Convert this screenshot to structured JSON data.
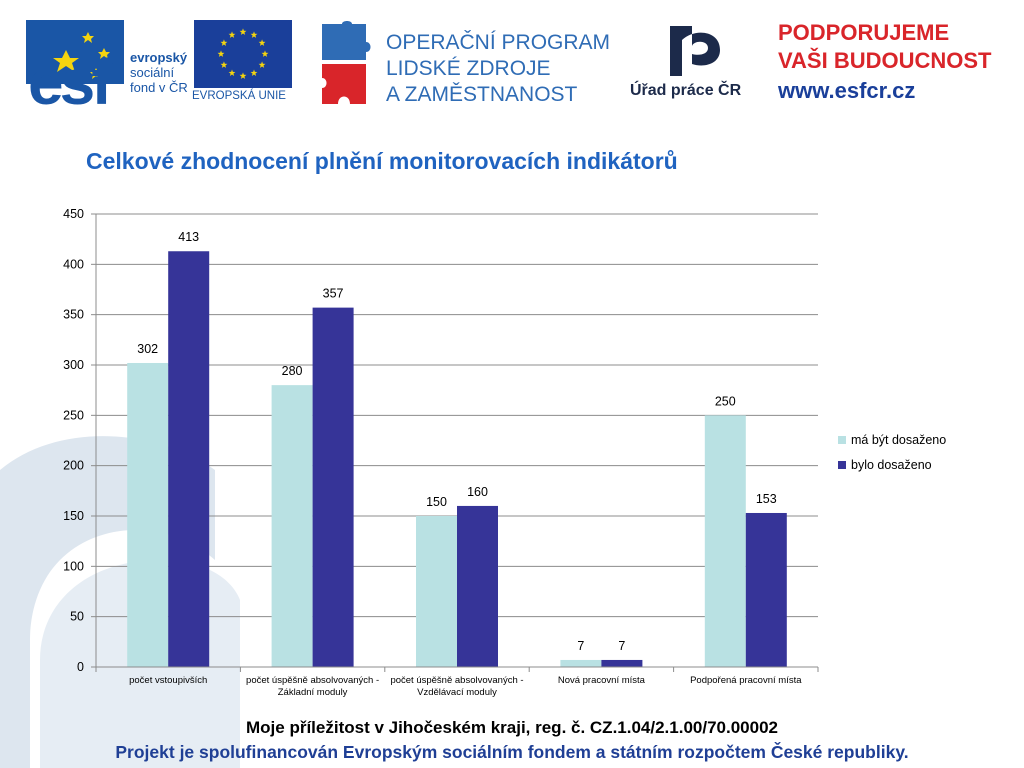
{
  "header": {
    "esf": {
      "letters": "esf",
      "line1": "evropský",
      "line2": "sociální",
      "line3": "fond v ČR",
      "eu_caption": "EVROPSKÁ UNIE"
    },
    "op": {
      "line1": "OPERAČNÍ PROGRAM",
      "line2": "LIDSKÉ ZDROJE",
      "line3": "A ZAMĚSTNANOST"
    },
    "urad": {
      "caption": "Úřad práce ČR"
    },
    "podporujeme": {
      "line1": "PODPORUJEME",
      "line2": "VAŠI BUDOUCNOST",
      "web": "www.esfcr.cz"
    }
  },
  "chart_data": {
    "type": "bar",
    "title": "Celkové zhodnocení plnění monitorovacích indikátorů",
    "categories": [
      [
        "počet vstoupivších"
      ],
      [
        "počet úspěšně absolvovaných -",
        "Základní moduly"
      ],
      [
        "počet úspěšně absolvovaných -",
        "Vzdělávací moduly"
      ],
      [
        "Nová pracovní místa"
      ],
      [
        "Podpořená pracovní místa"
      ]
    ],
    "series": [
      {
        "name": "má být dosaženo",
        "values": [
          302,
          280,
          150,
          7,
          250
        ],
        "color": "#b9e1e3"
      },
      {
        "name": "bylo dosaženo",
        "values": [
          413,
          357,
          160,
          7,
          153
        ],
        "color": "#363498"
      }
    ],
    "ylim": [
      0,
      450
    ],
    "yticks": [
      0,
      50,
      100,
      150,
      200,
      250,
      300,
      350,
      400,
      450
    ],
    "grid": true,
    "legend": "right",
    "data_labels": true
  },
  "footer": {
    "line1": "Moje příležitost v Jihočeském kraji, reg. č. CZ.1.04/2.1.00/70.00002",
    "line2": "Projekt je spolufinancován Evropským sociálním fondem a státním rozpočtem České republiky."
  },
  "colors": {
    "title": "#1f63c0",
    "footer_blue": "#1f3f95",
    "background_mark": "#dde6ef"
  }
}
